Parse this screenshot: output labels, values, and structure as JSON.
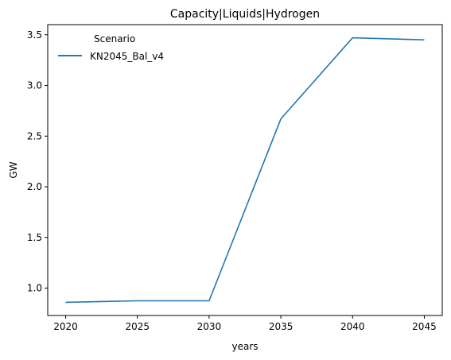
{
  "chart_data": {
    "type": "line",
    "title": "Capacity|Liquids|Hydrogen",
    "xlabel": "years",
    "ylabel": "GW",
    "x": [
      2020,
      2025,
      2030,
      2035,
      2040,
      2045
    ],
    "xticks": [
      "2020",
      "2025",
      "2030",
      "2035",
      "2040",
      "2045"
    ],
    "yticks": [
      "1.0",
      "1.5",
      "2.0",
      "2.5",
      "3.0",
      "3.5"
    ],
    "xlim": [
      2018.75,
      2046.25
    ],
    "ylim": [
      0.73,
      3.6
    ],
    "grid": false,
    "legend": {
      "title": "Scenario",
      "placement": "top-left"
    },
    "series": [
      {
        "name": "KN2045_Bal_v4",
        "color": "#1f77b4",
        "values": [
          0.86,
          0.875,
          0.875,
          2.67,
          3.47,
          3.45
        ]
      }
    ]
  }
}
